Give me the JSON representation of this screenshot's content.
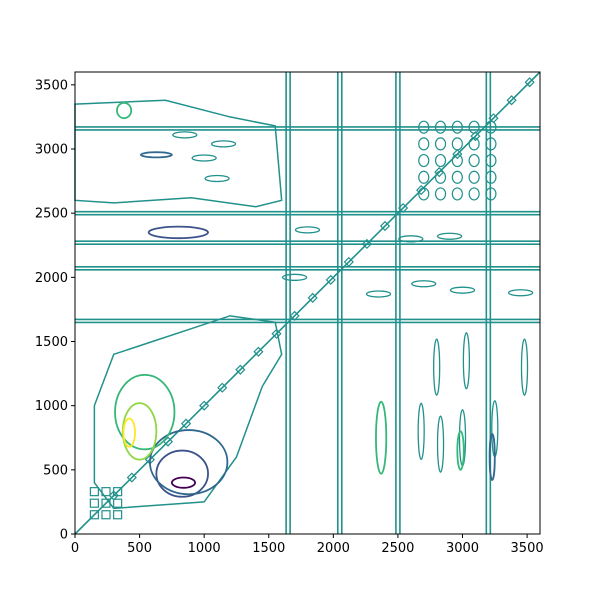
{
  "chart_data": {
    "type": "contour",
    "title": "",
    "xlabel": "",
    "ylabel": "",
    "xlim": [
      0,
      3600
    ],
    "ylim": [
      0,
      3600
    ],
    "x_ticks": [
      0,
      500,
      1000,
      1500,
      2000,
      2500,
      3000,
      3500
    ],
    "y_ticks": [
      0,
      500,
      1000,
      1500,
      2000,
      2500,
      3000,
      3500
    ],
    "grid": false,
    "legend": "none",
    "colormap": "viridis",
    "colors": {
      "mid_teal": "#21918c",
      "dark_purple": "#440154",
      "indigo": "#3b528b",
      "slate_blue": "#31688e",
      "green": "#35b779",
      "lime": "#90d743",
      "yellow": "#fde725"
    },
    "features": {
      "diagonal": {
        "from": [
          0,
          0
        ],
        "to": [
          3600,
          3600
        ]
      },
      "vertical_bands": [
        1650,
        2050,
        2500,
        3200
      ],
      "horizontal_bands": [
        1660,
        2070,
        2270,
        2500,
        3160
      ]
    },
    "contours": [
      {
        "level": "lowest",
        "color": "#440154",
        "center": [
          840,
          400
        ],
        "rx": 90,
        "ry": 40
      },
      {
        "level": "low",
        "color": "#3b528b",
        "center": [
          830,
          470
        ],
        "rx": 200,
        "ry": 180
      },
      {
        "level": "low",
        "color": "#31688e",
        "center": [
          880,
          560
        ],
        "rx": 300,
        "ry": 250
      },
      {
        "level": "low",
        "color": "#3b528b",
        "center": [
          800,
          2350
        ],
        "rx": 230,
        "ry": 45
      },
      {
        "level": "low",
        "color": "#31688e",
        "center": [
          630,
          2955
        ],
        "rx": 120,
        "ry": 20
      },
      {
        "level": "high",
        "color": "#35b779",
        "center": [
          540,
          950
        ],
        "rx": 230,
        "ry": 290
      },
      {
        "level": "higher",
        "color": "#90d743",
        "center": [
          500,
          800
        ],
        "rx": 130,
        "ry": 220
      },
      {
        "level": "highest",
        "color": "#fde725",
        "center": [
          420,
          790
        ],
        "rx": 45,
        "ry": 110
      },
      {
        "level": "high",
        "color": "#35b779",
        "center": [
          380,
          3300
        ],
        "rx": 55,
        "ry": 60
      },
      {
        "level": "high",
        "color": "#35b779",
        "center": [
          2370,
          750
        ],
        "rx": 40,
        "ry": 280
      },
      {
        "level": "high",
        "color": "#35b779",
        "center": [
          2985,
          650
        ],
        "rx": 25,
        "ry": 150
      },
      {
        "level": "low",
        "color": "#31688e",
        "center": [
          3230,
          600
        ],
        "rx": 20,
        "ry": 180
      }
    ]
  }
}
